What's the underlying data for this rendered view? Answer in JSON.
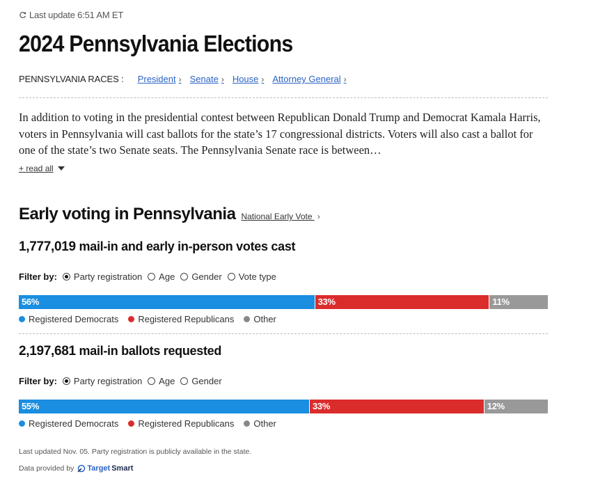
{
  "header": {
    "last_update": "Last update 6:51 AM ET",
    "title": "2024 Pennsylvania Elections"
  },
  "races": {
    "label": "PENNSYLVANIA RACES :",
    "links": [
      "President",
      "Senate",
      "House",
      "Attorney General"
    ]
  },
  "intro": {
    "text": "In addition to voting in the presidential contest between Republican Donald Trump and Democrat Kamala Harris, voters in Pennsylvania will cast ballots for the state’s 17 congressional districts. Voters will also cast a ballot for one of the state’s two Senate seats. The Pennsylvania Senate race is between…",
    "read_all": "+ read all"
  },
  "early_voting": {
    "title": "Early voting in Pennsylvania",
    "national_link": "National Early Vote",
    "votes_cast": {
      "number": "1,777,019",
      "label": " mail-in and early in-person votes cast",
      "filter_label": "Filter by:",
      "filters": [
        "Party registration",
        "Age",
        "Gender",
        "Vote type"
      ],
      "selected_filter": "Party registration",
      "bar": [
        {
          "label": "56%",
          "value": 56,
          "color": "#1a8ee0"
        },
        {
          "label": "33%",
          "value": 33,
          "color": "#db2c2c"
        },
        {
          "label": "11%",
          "value": 11,
          "color": "#999999"
        }
      ],
      "legend": [
        "Registered Democrats",
        "Registered Republicans",
        "Other"
      ]
    },
    "ballots_requested": {
      "number": "2,197,681",
      "label": " mail-in ballots requested",
      "filter_label": "Filter by:",
      "filters": [
        "Party registration",
        "Age",
        "Gender"
      ],
      "selected_filter": "Party registration",
      "bar": [
        {
          "label": "55%",
          "value": 55,
          "color": "#1a8ee0"
        },
        {
          "label": "33%",
          "value": 33,
          "color": "#db2c2c"
        },
        {
          "label": "12%",
          "value": 12,
          "color": "#999999"
        }
      ],
      "legend": [
        "Registered Democrats",
        "Registered Republicans",
        "Other"
      ]
    }
  },
  "footer": {
    "note": "Last updated Nov. 05. Party registration is publicly available in the state.",
    "provided_by": "Data provided by",
    "brand_part1": "Target",
    "brand_part2": "Smart"
  },
  "icons": {
    "refresh": "refresh-icon",
    "chevron": "chevron-right-icon",
    "caret": "caret-down-icon"
  }
}
